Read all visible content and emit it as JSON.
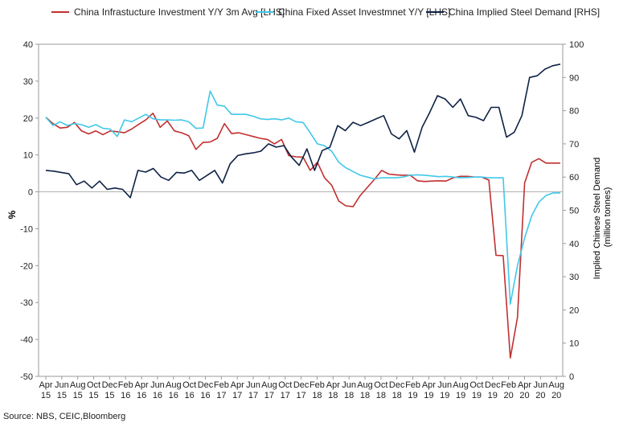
{
  "chart_data": {
    "type": "line",
    "y_left": {
      "label": "%",
      "ylim": [
        -50,
        40
      ],
      "ticks": [
        40,
        30,
        20,
        10,
        0,
        -10,
        -20,
        -30,
        -40,
        -50
      ]
    },
    "y_right": {
      "label_lines": [
        "Implied Chinese Steel Demand",
        "(million tonnes)"
      ],
      "ylim": [
        0,
        100
      ],
      "ticks": [
        100,
        90,
        80,
        70,
        60,
        50,
        40,
        30,
        20,
        10,
        0
      ]
    },
    "x_ticks": [
      {
        "m": "Apr",
        "y": "15"
      },
      {
        "m": "Jun",
        "y": "15"
      },
      {
        "m": "Aug",
        "y": "15"
      },
      {
        "m": "Oct",
        "y": "15"
      },
      {
        "m": "Dec",
        "y": "15"
      },
      {
        "m": "Feb",
        "y": "16"
      },
      {
        "m": "Apr",
        "y": "16"
      },
      {
        "m": "Jun",
        "y": "16"
      },
      {
        "m": "Aug",
        "y": "16"
      },
      {
        "m": "Oct",
        "y": "16"
      },
      {
        "m": "Dec",
        "y": "16"
      },
      {
        "m": "Feb",
        "y": "17"
      },
      {
        "m": "Apr",
        "y": "17"
      },
      {
        "m": "Jun",
        "y": "17"
      },
      {
        "m": "Aug",
        "y": "17"
      },
      {
        "m": "Oct",
        "y": "17"
      },
      {
        "m": "Dec",
        "y": "17"
      },
      {
        "m": "Feb",
        "y": "18"
      },
      {
        "m": "Apr",
        "y": "18"
      },
      {
        "m": "Jun",
        "y": "18"
      },
      {
        "m": "Aug",
        "y": "18"
      },
      {
        "m": "Oct",
        "y": "18"
      },
      {
        "m": "Dec",
        "y": "18"
      },
      {
        "m": "Feb",
        "y": "19"
      },
      {
        "m": "Apr",
        "y": "19"
      },
      {
        "m": "Jun",
        "y": "19"
      },
      {
        "m": "Aug",
        "y": "19"
      },
      {
        "m": "Oct",
        "y": "19"
      },
      {
        "m": "Dec",
        "y": "19"
      },
      {
        "m": "Feb",
        "y": "20"
      },
      {
        "m": "Apr",
        "y": "20"
      },
      {
        "m": "Jun",
        "y": "20"
      },
      {
        "m": "Aug",
        "y": "20"
      }
    ],
    "legend_position": "top",
    "grid": false,
    "series": [
      {
        "name": "China Infrastucture Investment Y/Y 3m Avg [LHS]",
        "axis": "left",
        "color": "#c0302f",
        "values": [
          20.2,
          18.5,
          17.3,
          17.5,
          18.8,
          16.5,
          15.7,
          16.5,
          15.5,
          16.5,
          16.3,
          16.0,
          17.0,
          18.3,
          19.5,
          21.3,
          17.5,
          19.2,
          16.5,
          16.0,
          15.2,
          11.5,
          13.4,
          13.5,
          14.5,
          18.5,
          15.8,
          16.0,
          15.5,
          15.0,
          14.5,
          14.2,
          13.0,
          14.2,
          9.8,
          9.5,
          9.4,
          5.8,
          8.0,
          3.8,
          1.8,
          -2.5,
          -3.8,
          -4.0,
          -1.0,
          1.2,
          3.4,
          5.8,
          4.8,
          4.6,
          4.5,
          4.5,
          3.0,
          2.8,
          2.9,
          3.0,
          2.9,
          3.8,
          4.2,
          4.2,
          4.0,
          4.0,
          3.2,
          -17.2,
          -17.3,
          -45.0,
          -34.0,
          2.4,
          8.0,
          9.0,
          7.8,
          7.8,
          7.8
        ]
      },
      {
        "name": "China Fixed Asset Investmnet Y/Y [LHS]",
        "axis": "left",
        "color": "#41c8e8",
        "values": [
          20.2,
          18.0,
          19.0,
          18.0,
          18.5,
          18.2,
          17.5,
          18.2,
          17.2,
          17.0,
          15.0,
          19.5,
          19.0,
          20.0,
          21.0,
          19.8,
          19.5,
          19.5,
          19.4,
          19.5,
          19.0,
          17.2,
          17.3,
          27.3,
          23.5,
          23.2,
          21.0,
          21.0,
          21.0,
          20.5,
          19.8,
          19.6,
          19.8,
          19.5,
          20.0,
          19.0,
          18.8,
          16.0,
          13.0,
          12.5,
          11.0,
          8.0,
          6.5,
          5.5,
          4.5,
          4.0,
          3.5,
          3.8,
          3.8,
          3.8,
          4.0,
          4.5,
          4.6,
          4.5,
          4.3,
          4.1,
          4.2,
          4.0,
          3.8,
          3.9,
          4.0,
          4.0,
          3.8,
          3.8,
          3.8,
          -30.4,
          -20.0,
          -12.5,
          -6.5,
          -2.8,
          -1.0,
          -0.3,
          -0.3
        ]
      },
      {
        "name": "China Implied Steel Demand [RHS]",
        "axis": "right",
        "color": "#0e2244",
        "values": [
          62.0,
          61.8,
          61.4,
          61.0,
          57.7,
          58.8,
          56.7,
          58.8,
          56.3,
          56.7,
          56.3,
          53.8,
          62.0,
          61.5,
          62.6,
          60.0,
          59.0,
          61.4,
          61.2,
          62.0,
          59.0,
          60.5,
          62.0,
          58.2,
          64.0,
          66.5,
          67.0,
          67.3,
          67.8,
          70.0,
          69.0,
          69.5,
          66.0,
          63.5,
          68.5,
          62.0,
          68.0,
          69.0,
          75.5,
          74.0,
          76.5,
          75.5,
          76.5,
          77.5,
          78.5,
          73.0,
          71.5,
          74.0,
          67.5,
          75.0,
          79.5,
          84.5,
          83.5,
          81.0,
          83.5,
          78.5,
          78.0,
          77.0,
          81.0,
          81.0,
          72.0,
          73.5,
          78.5,
          90.0,
          90.5,
          92.5,
          93.5,
          94.0
        ]
      }
    ]
  },
  "source": "Source: NBS, CEIC,Bloomberg"
}
